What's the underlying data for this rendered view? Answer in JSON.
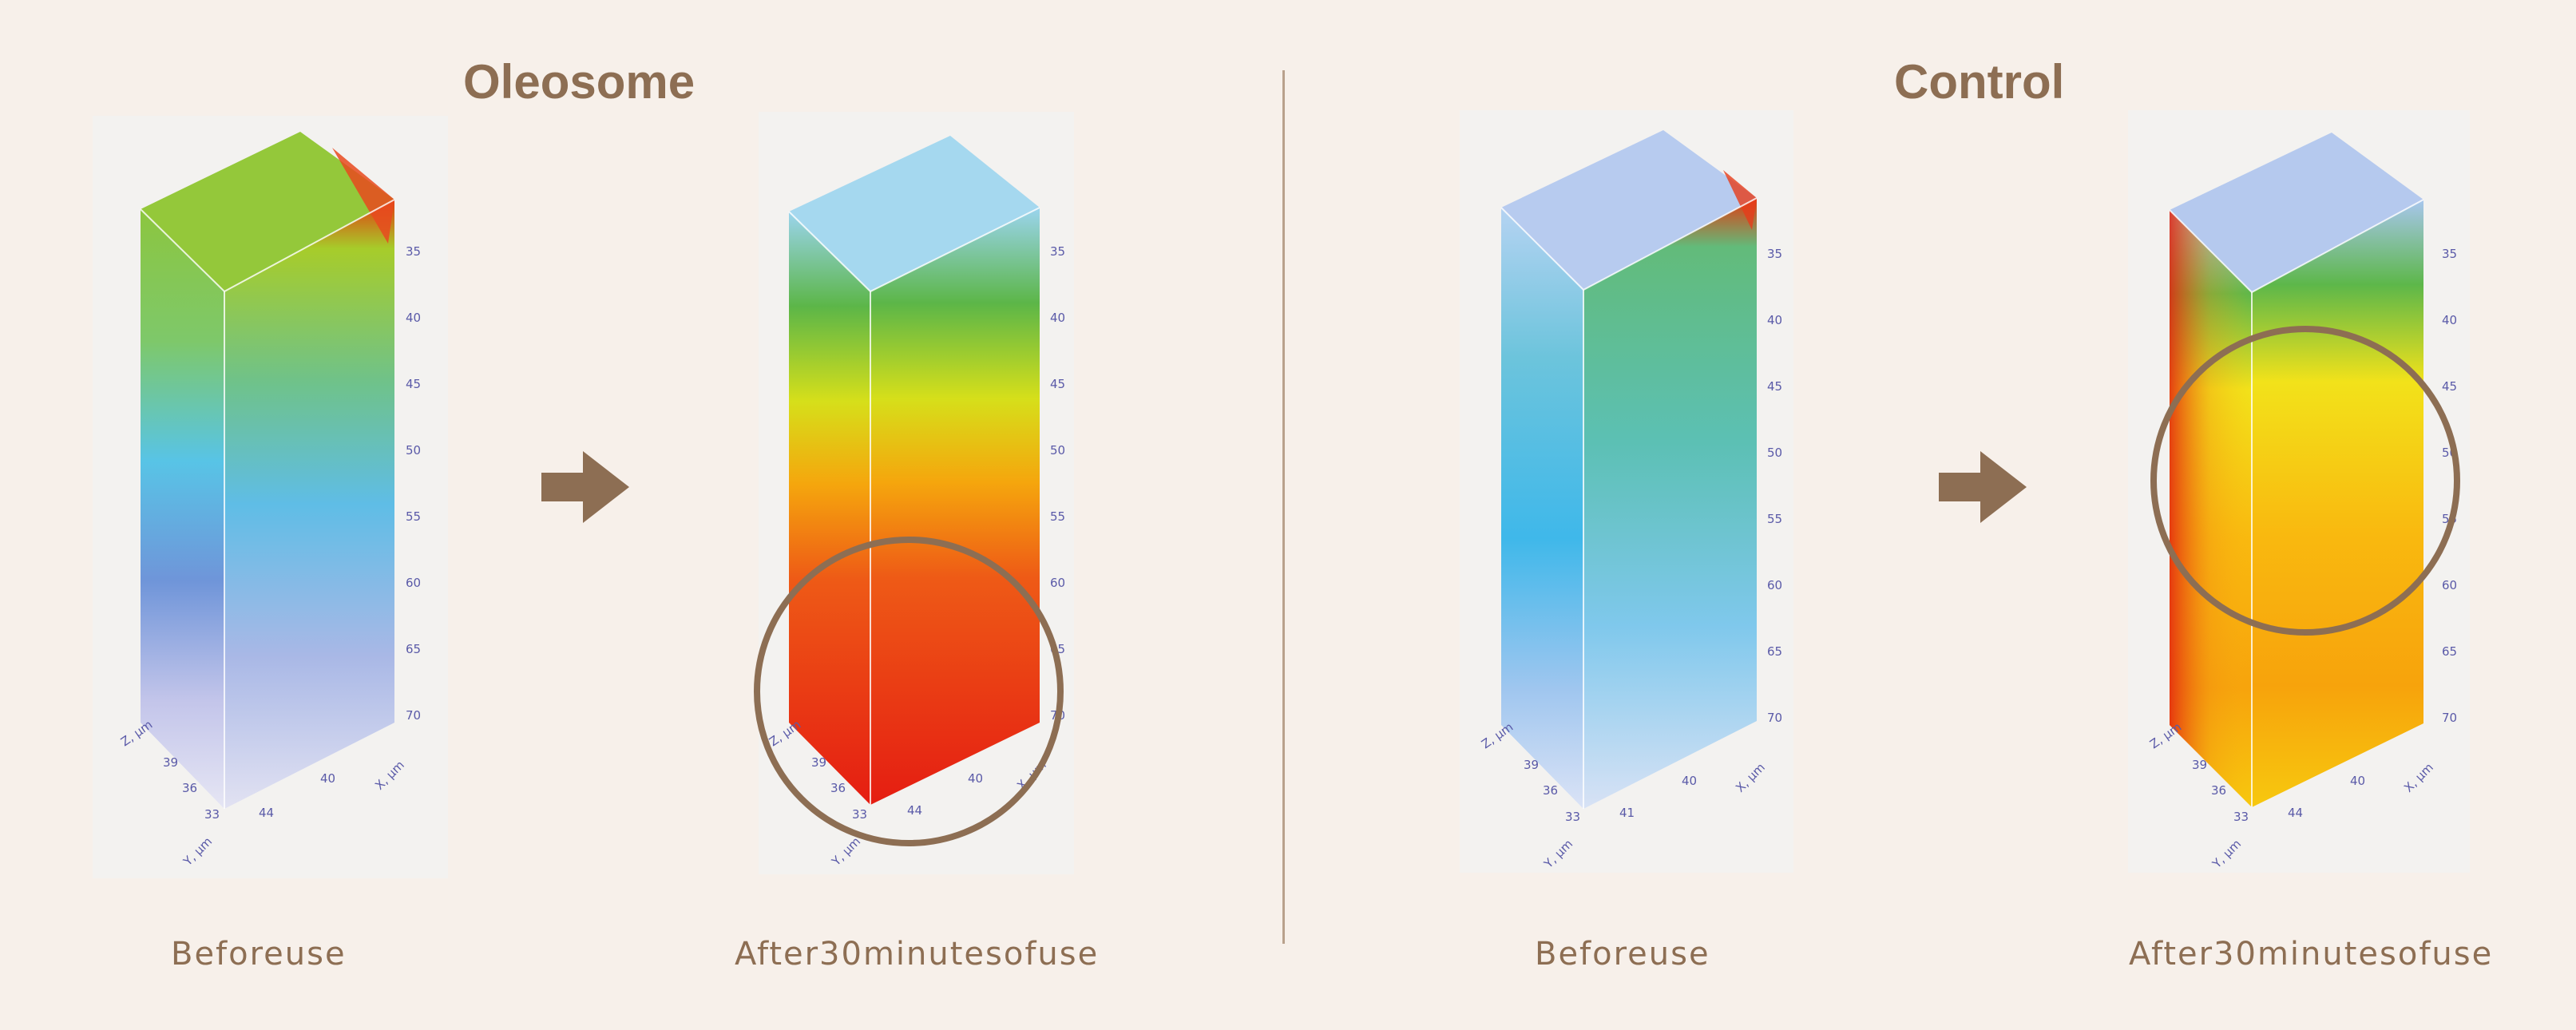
{
  "colors": {
    "accent": "#8d6e53",
    "background": "#f7f0ea",
    "panel_bg": "#f3f2f0"
  },
  "sections": [
    {
      "title": "Oleosome",
      "captions": [
        "Beforeuse",
        "After30minutesofuse"
      ]
    },
    {
      "title": "Control",
      "captions": [
        "Beforeuse",
        "After30minutesofuse"
      ]
    }
  ],
  "axes": {
    "x_label": "X, µm",
    "y_label": "Y, µm",
    "z_label": "Z, µm",
    "z_ticks": [
      "35",
      "40",
      "45",
      "50",
      "55",
      "60",
      "65",
      "70"
    ],
    "x_ticks": [
      "40"
    ],
    "y_ticks": [
      "33",
      "36",
      "39"
    ],
    "bottom_tick": "44",
    "oleosome_after_bottom_tick": "44",
    "control_before_bottom_tick": "41",
    "control_after_bottom_tick": "44"
  },
  "icons": [
    "right-arrow-icon",
    "highlight-circle-icon"
  ]
}
